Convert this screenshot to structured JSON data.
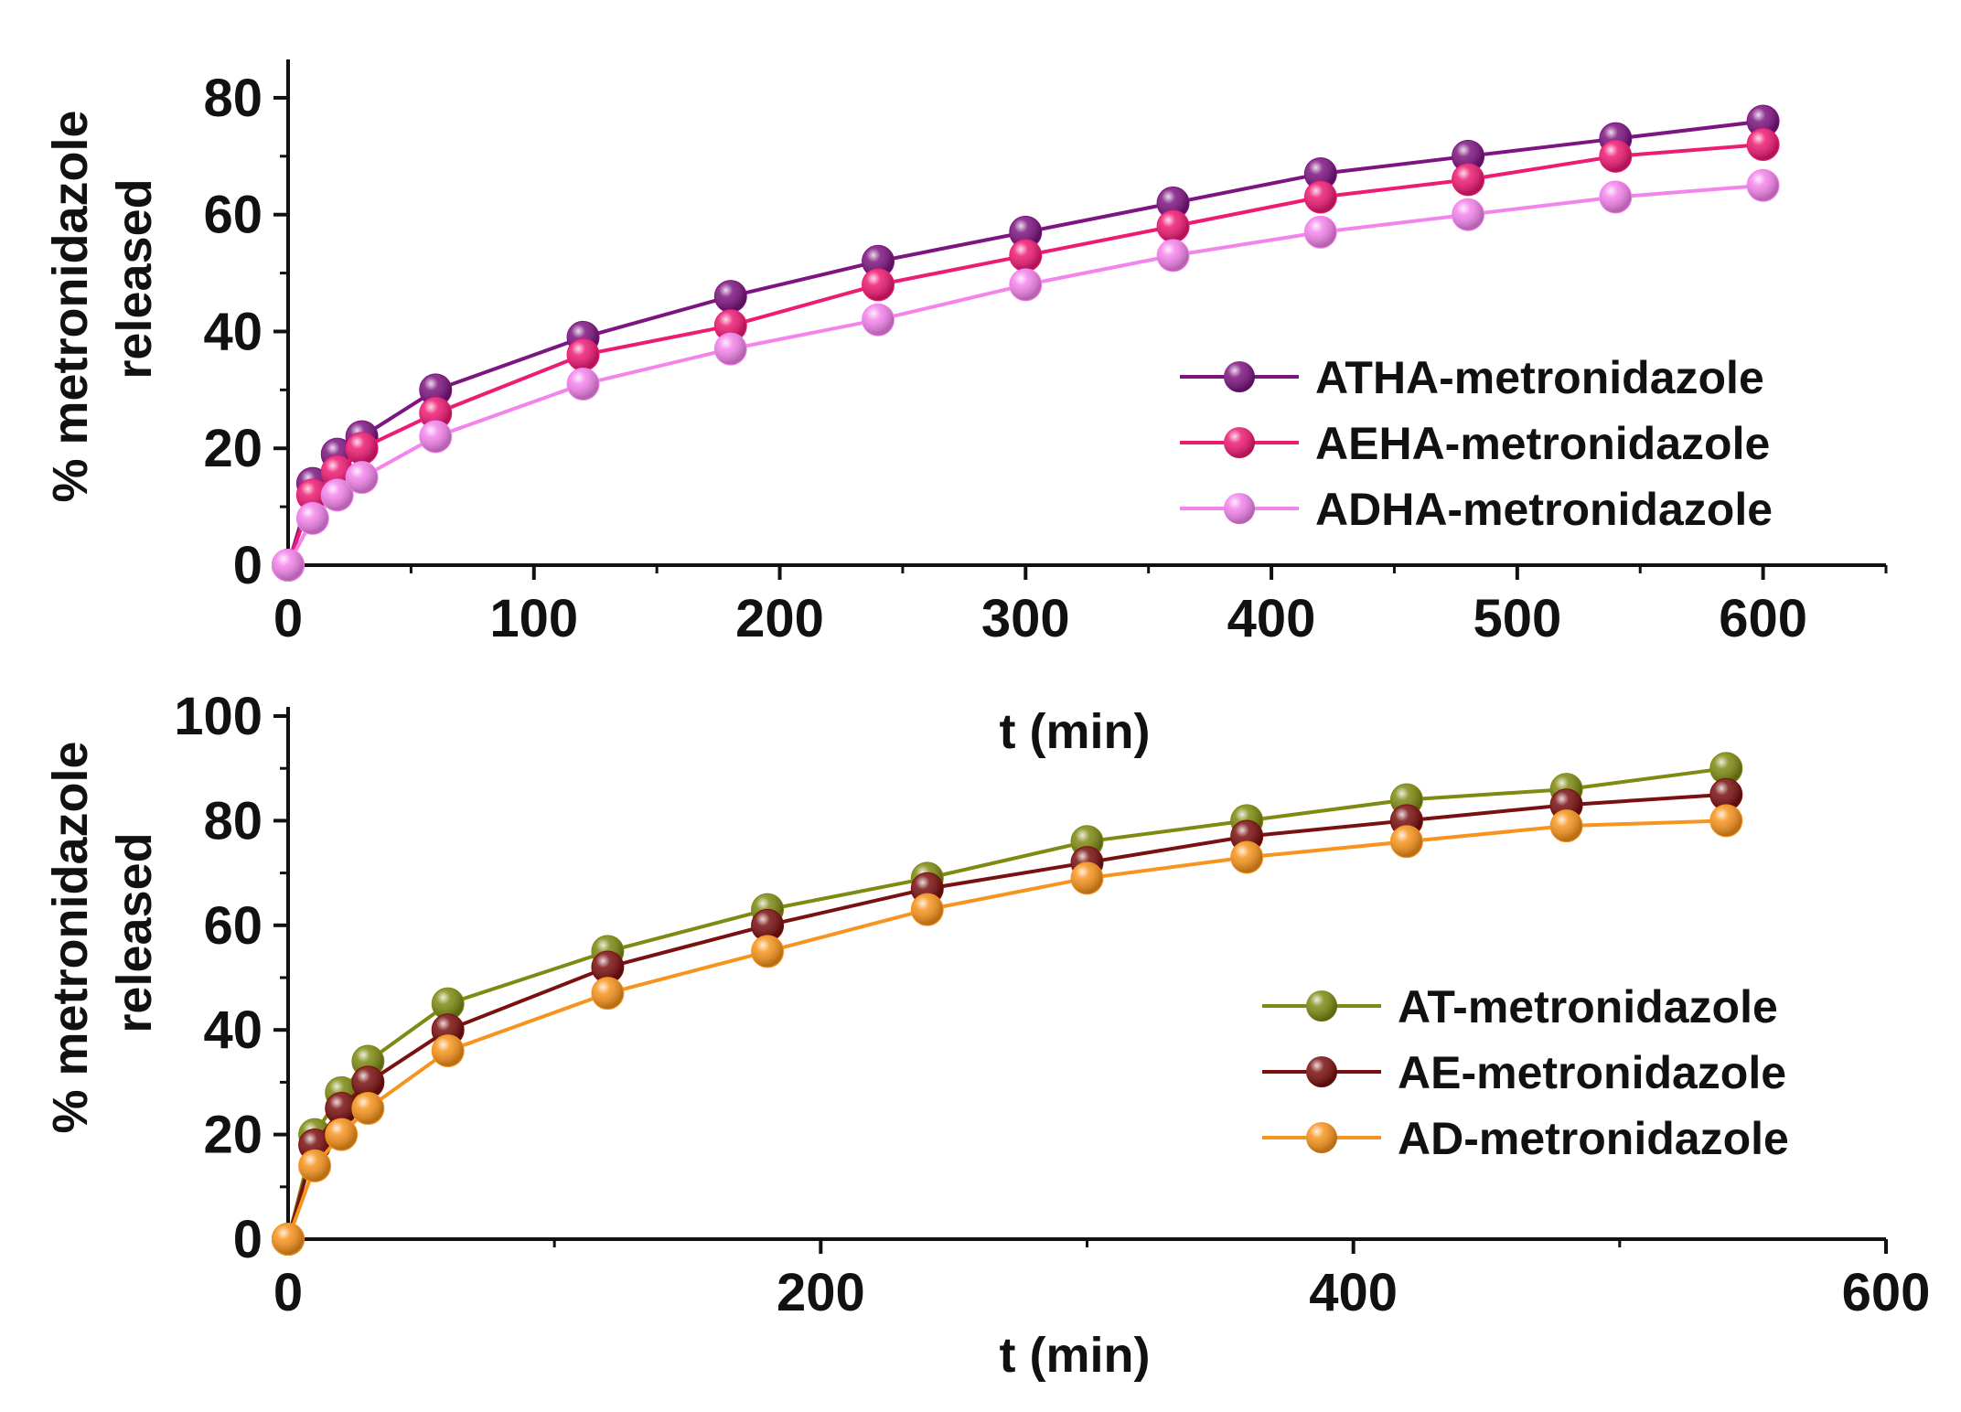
{
  "chart_data": [
    {
      "type": "line",
      "xlabel": "t (min)",
      "ylabel": "% metronidazole released",
      "ylabel_lines": [
        "% metronidazole",
        "released"
      ],
      "xlim": [
        0,
        650
      ],
      "ylim": [
        0,
        85
      ],
      "xticks": [
        0,
        100,
        200,
        300,
        400,
        500,
        600
      ],
      "yticks": [
        0,
        20,
        40,
        60,
        80
      ],
      "legend_position": "center-right",
      "series": [
        {
          "name": "ATHA-metronidazole",
          "color": "#7d1580",
          "x": [
            0,
            10,
            20,
            30,
            60,
            120,
            180,
            240,
            300,
            360,
            420,
            480,
            540,
            600
          ],
          "values": [
            0,
            14,
            19,
            22,
            30,
            39,
            46,
            52,
            57,
            62,
            67,
            70,
            73,
            76
          ]
        },
        {
          "name": "AEHA-metronidazole",
          "color": "#ee1b74",
          "x": [
            0,
            10,
            20,
            30,
            60,
            120,
            180,
            240,
            300,
            360,
            420,
            480,
            540,
            600
          ],
          "values": [
            0,
            12,
            16,
            20,
            26,
            36,
            41,
            48,
            53,
            58,
            63,
            66,
            70,
            72
          ]
        },
        {
          "name": "ADHA-metronidazole",
          "color": "#f484ec",
          "x": [
            0,
            10,
            20,
            30,
            60,
            120,
            180,
            240,
            300,
            360,
            420,
            480,
            540,
            600
          ],
          "values": [
            0,
            8,
            12,
            15,
            22,
            31,
            37,
            42,
            48,
            53,
            57,
            60,
            63,
            65
          ]
        }
      ]
    },
    {
      "type": "line",
      "xlabel": "t (min)",
      "ylabel": "% metronidazole released",
      "ylabel_lines": [
        "% metronidazole",
        "released"
      ],
      "xlim": [
        0,
        600
      ],
      "ylim": [
        0,
        100
      ],
      "xticks": [
        0,
        200,
        400,
        600
      ],
      "yticks": [
        0,
        20,
        40,
        60,
        80,
        100
      ],
      "legend_position": "center-right",
      "series": [
        {
          "name": "AT-metronidazole",
          "color": "#7e8a12",
          "x": [
            0,
            10,
            20,
            30,
            60,
            120,
            180,
            240,
            300,
            360,
            420,
            480,
            540
          ],
          "values": [
            0,
            20,
            28,
            34,
            45,
            55,
            63,
            69,
            76,
            80,
            84,
            86,
            90
          ]
        },
        {
          "name": "AE-metronidazole",
          "color": "#7a1010",
          "x": [
            0,
            10,
            20,
            30,
            60,
            120,
            180,
            240,
            300,
            360,
            420,
            480,
            540
          ],
          "values": [
            0,
            18,
            25,
            30,
            40,
            52,
            60,
            67,
            72,
            77,
            80,
            83,
            85
          ]
        },
        {
          "name": "AD-metronidazole",
          "color": "#f7941d",
          "x": [
            0,
            10,
            20,
            30,
            60,
            120,
            180,
            240,
            300,
            360,
            420,
            480,
            540
          ],
          "values": [
            0,
            14,
            20,
            25,
            36,
            47,
            55,
            63,
            69,
            73,
            76,
            79,
            80
          ]
        }
      ]
    }
  ]
}
